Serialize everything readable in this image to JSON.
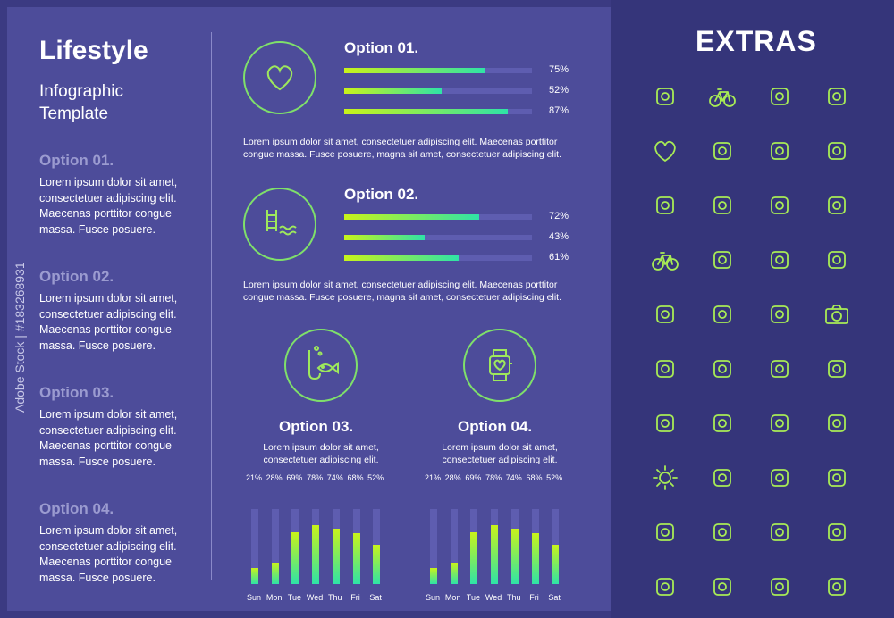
{
  "header": {
    "title": "Lifestyle",
    "subtitle_line1": "Infographic",
    "subtitle_line2": "Template"
  },
  "left_options": [
    {
      "title": "Option 01.",
      "text": "Lorem ipsum dolor sit amet, consectetuer adipiscing elit. Maecenas porttitor congue massa. Fusce posuere."
    },
    {
      "title": "Option 02.",
      "text": "Lorem ipsum dolor sit amet, consectetuer adipiscing elit. Maecenas porttitor congue massa. Fusce posuere."
    },
    {
      "title": "Option 03.",
      "text": "Lorem ipsum dolor sit amet, consectetuer adipiscing elit. Maecenas porttitor congue massa. Fusce posuere."
    },
    {
      "title": "Option 04.",
      "text": "Lorem ipsum dolor sit amet, consectetuer adipiscing elit. Maecenas porttitor congue massa. Fusce posuere."
    }
  ],
  "option01": {
    "title": "Option 01.",
    "icon": "heart-icon",
    "bars": [
      {
        "value": 75,
        "label": "75%"
      },
      {
        "value": 52,
        "label": "52%"
      },
      {
        "value": 87,
        "label": "87%"
      }
    ],
    "text_line1": "Lorem ipsum dolor sit amet, consectetuer adipiscing elit. Maecenas porttitor",
    "text_line2": "congue massa. Fusce posuere, magna sit amet, consectetuer adipiscing elit."
  },
  "option02": {
    "title": "Option 02.",
    "icon": "pool-ladder-icon",
    "bars": [
      {
        "value": 72,
        "label": "72%"
      },
      {
        "value": 43,
        "label": "43%"
      },
      {
        "value": 61,
        "label": "61%"
      }
    ],
    "text_line1": "Lorem ipsum dolor sit amet, consectetuer adipiscing elit. Maecenas porttitor",
    "text_line2": "congue massa. Fusce posuere, magna sit amet, consectetuer adipiscing elit."
  },
  "option03": {
    "title": "Option 03.",
    "icon": "fishing-hook-icon",
    "text_line1": "Lorem ipsum dolor sit amet,",
    "text_line2": "consectetuer adipiscing elit."
  },
  "option04": {
    "title": "Option 04.",
    "icon": "smartwatch-heart-icon",
    "text_line1": "Lorem ipsum dolor sit amet,",
    "text_line2": "consectetuer adipiscing elit."
  },
  "chart_data": [
    {
      "type": "bar",
      "categories": [
        "Sun",
        "Mon",
        "Tue",
        "Wed",
        "Thu",
        "Fri",
        "Sat"
      ],
      "values": [
        21,
        28,
        69,
        78,
        74,
        68,
        52
      ],
      "labels": [
        "21%",
        "28%",
        "69%",
        "78%",
        "74%",
        "68%",
        "52%"
      ],
      "ylim": [
        0,
        100
      ]
    },
    {
      "type": "bar",
      "categories": [
        "Sun",
        "Mon",
        "Tue",
        "Wed",
        "Thu",
        "Fri",
        "Sat"
      ],
      "values": [
        21,
        28,
        69,
        78,
        74,
        68,
        52
      ],
      "labels": [
        "21%",
        "28%",
        "69%",
        "78%",
        "74%",
        "68%",
        "52%"
      ],
      "ylim": [
        0,
        100
      ]
    }
  ],
  "extras": {
    "title": "EXTRAS",
    "icons": [
      "exercise-bike-icon",
      "bicycle-icon",
      "pool-ladder-icon",
      "kayak-icon",
      "heart-icon",
      "scooter-icon",
      "film-strip-icon",
      "tent-icon",
      "palm-island-icon",
      "airplane-icon",
      "video-camera-icon",
      "fishing-hook-icon",
      "bicycle-icon",
      "mountain-climber-icon",
      "coffee-cup-icon",
      "french-fries-icon",
      "cyclist-icon",
      "thumbs-up-icon",
      "picture-frame-icon",
      "photo-camera-icon",
      "camper-van-icon",
      "person-vr-icon",
      "takeaway-cup-icon",
      "broccoli-icon",
      "roller-skate-icon",
      "avocado-icon",
      "gramophone-icon",
      "disco-ball-icon",
      "sun-icon",
      "smartwatch-heart-icon",
      "rafting-icon",
      "hiker-icon",
      "stopwatch-heart-icon",
      "playing-cards-icon",
      "chocolate-bar-icon",
      "horse-rider-icon",
      "beach-umbrella-icon",
      "golf-icon",
      "kitesurfer-icon",
      "frisbee-player-icon"
    ]
  },
  "watermark": {
    "side_text": "Adobe Stock | #183268931"
  },
  "colors": {
    "background": "#3b3a82",
    "panel": "#4d4c9a",
    "accent_yellow": "#c9f31a",
    "accent_teal": "#2fe3a7",
    "muted_heading": "#9b9bd0"
  }
}
